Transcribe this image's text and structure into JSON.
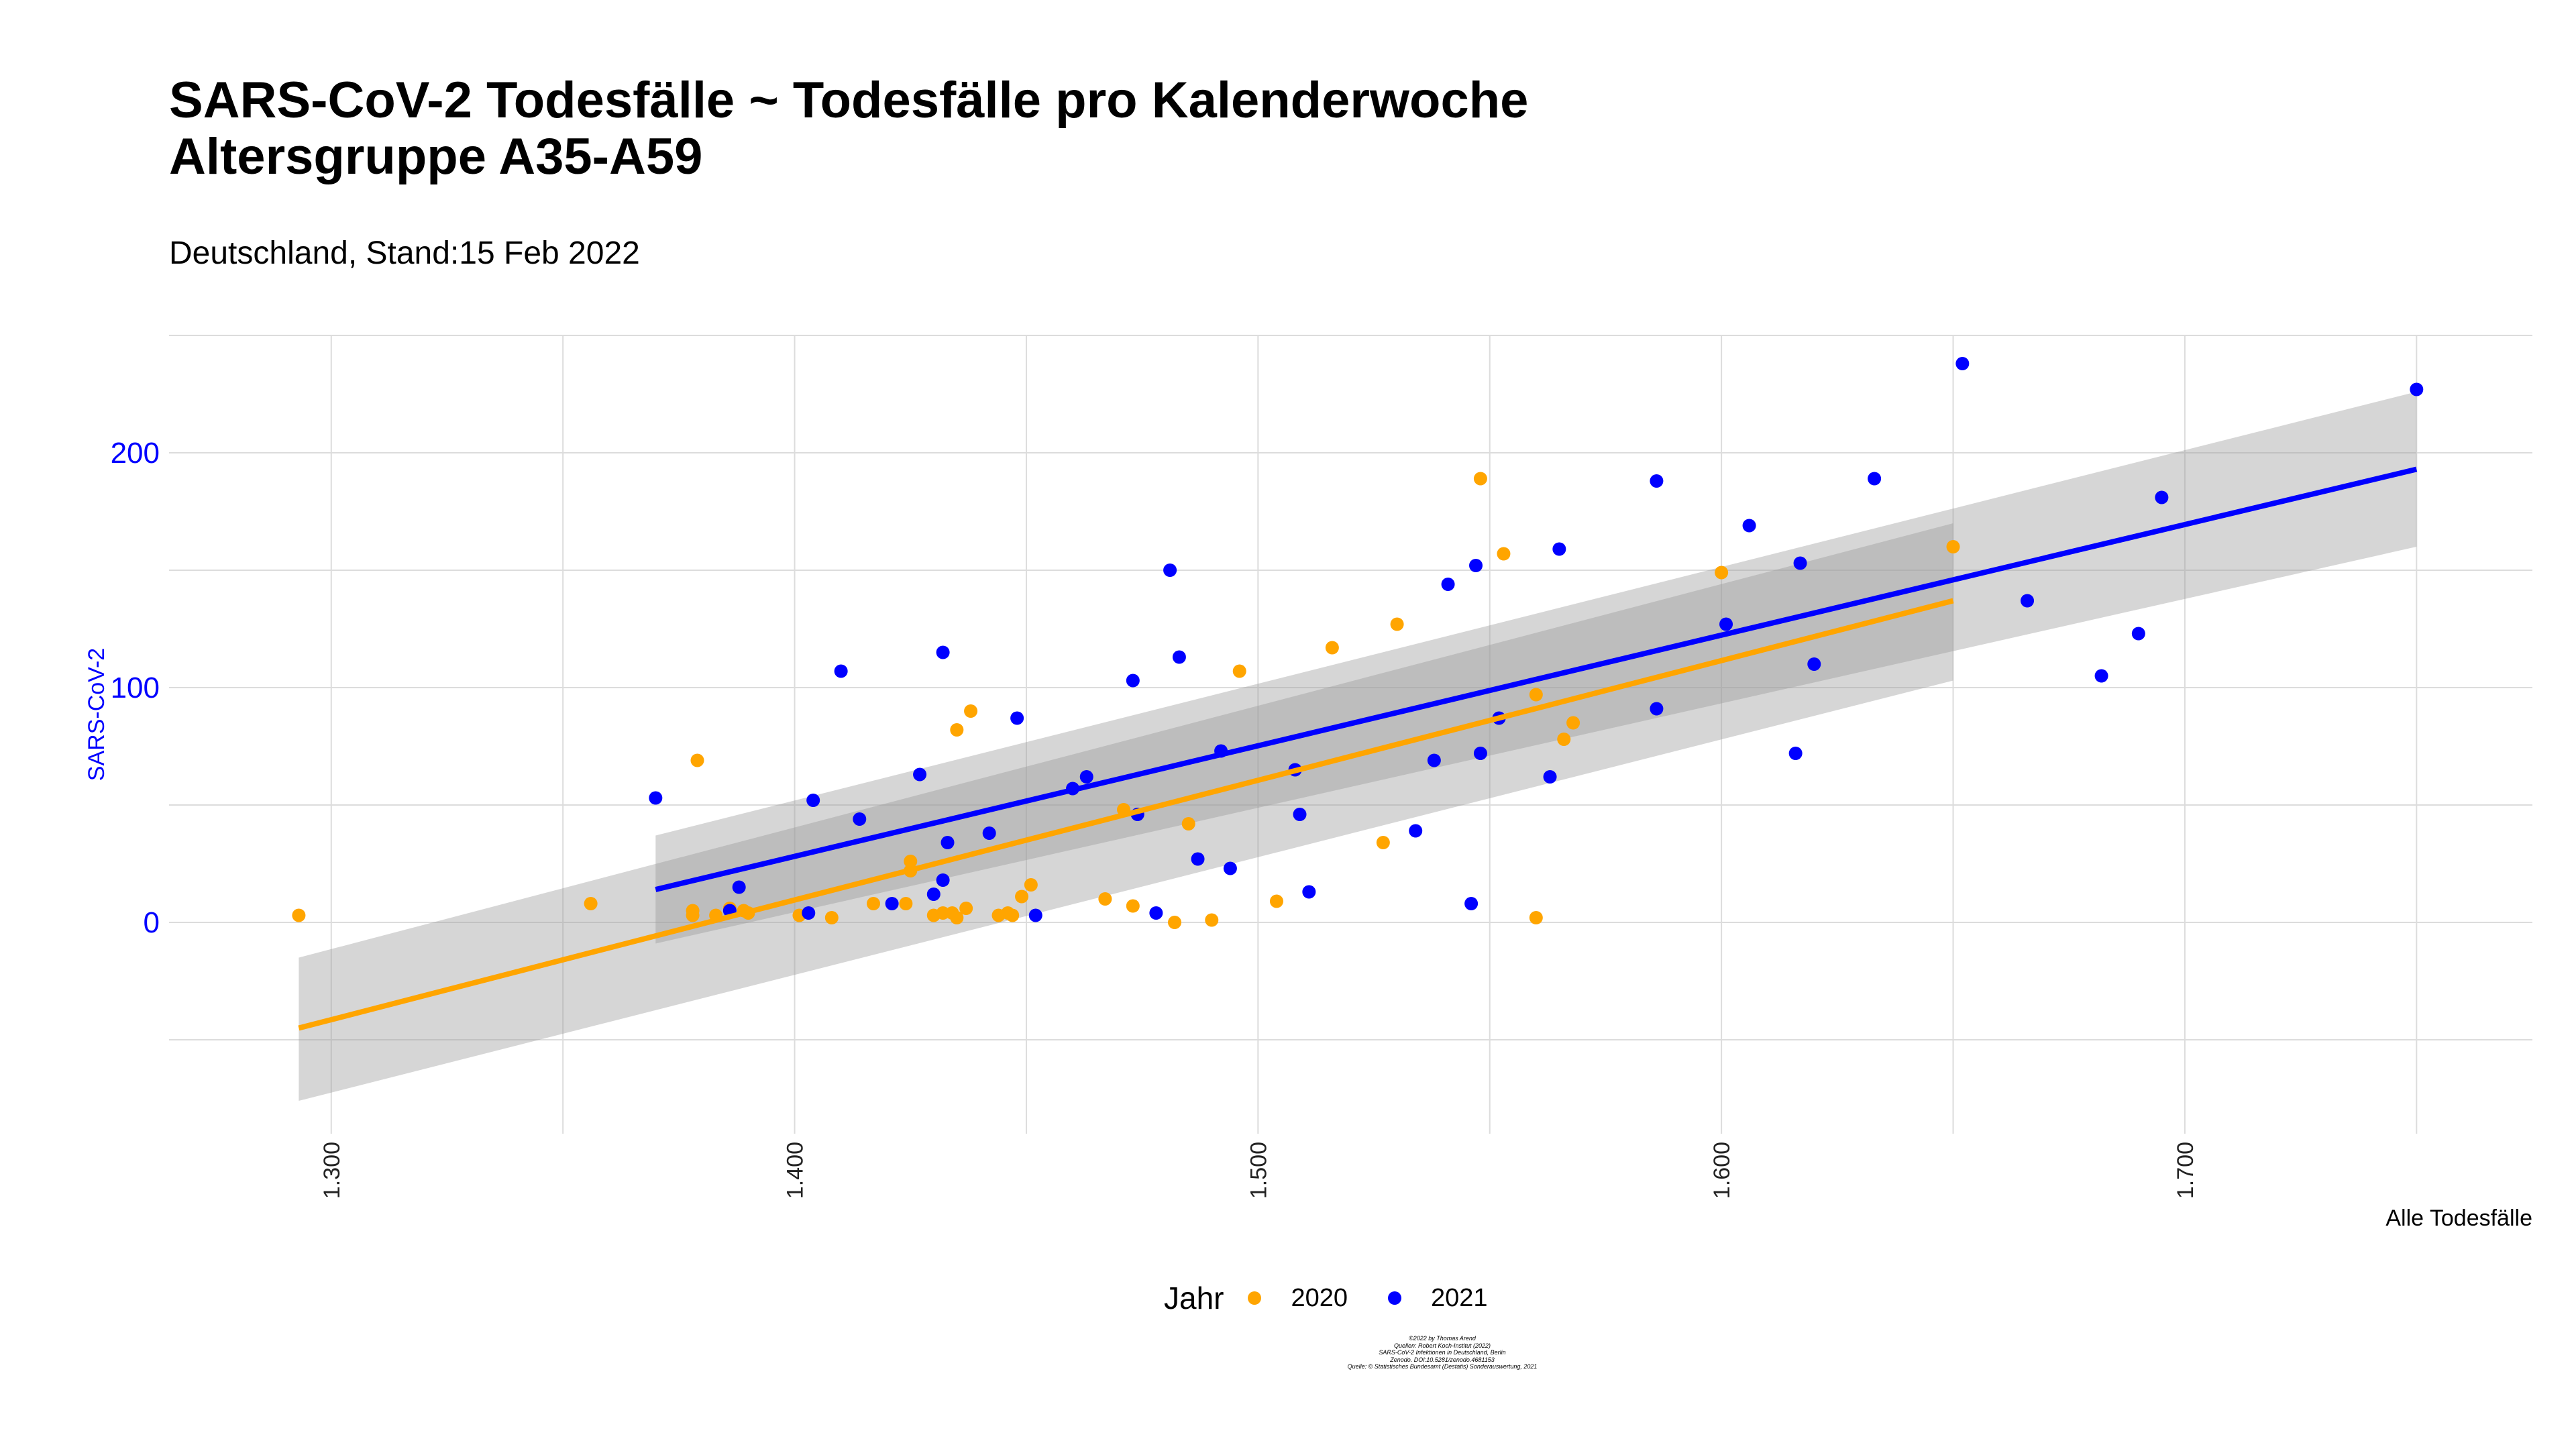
{
  "title_line1": "SARS-CoV-2 Todesfälle ~ Todesfälle pro Kalenderwoche",
  "title_line2": "Altersgruppe A35-A59",
  "subtitle": "Deutschland, Stand:15 Feb 2022",
  "legend": {
    "title": "Jahr",
    "items": [
      {
        "label": "2020",
        "color": "#ffa500"
      },
      {
        "label": "2021",
        "color": "#0000ff"
      }
    ]
  },
  "caption": [
    "©2022 by Thomas Arend",
    "Quellen: Robert Koch-Institut (2022)",
    "SARS-CoV-2 Infektionen in Deutschland, Berlin",
    "Zenodo. DOI:10.5281/zenodo.4681153",
    "Quelle: © Statistisches Bundesamt (Destatis) Sonderauswertung, 2021"
  ],
  "chart_data": {
    "type": "scatter",
    "title": "SARS-CoV-2 Todesfälle ~ Todesfälle pro Kalenderwoche",
    "subtitle": "Altersgruppe A35-A59",
    "xlabel": "Alle Todesfälle",
    "ylabel": "SARS-CoV-2",
    "xlim": [
      1265,
      1775
    ],
    "ylim": [
      -90,
      250
    ],
    "x_ticks": [
      1300,
      1400,
      1500,
      1600,
      1700
    ],
    "x_tick_labels": [
      "1.300",
      "1.400",
      "1.500",
      "1.600",
      "1.700"
    ],
    "y_ticks": [
      0,
      100,
      200
    ],
    "y_tick_labels": [
      "0",
      "100",
      "200"
    ],
    "grid": true,
    "legend_position": "bottom",
    "series": [
      {
        "name": "2020",
        "color": "#ffa500",
        "points": [
          [
            1293,
            3
          ],
          [
            1356,
            8
          ],
          [
            1378,
            5
          ],
          [
            1378,
            3
          ],
          [
            1379,
            69
          ],
          [
            1383,
            3
          ],
          [
            1386,
            6
          ],
          [
            1389,
            5
          ],
          [
            1390,
            4
          ],
          [
            1401,
            3
          ],
          [
            1408,
            2
          ],
          [
            1417,
            8
          ],
          [
            1424,
            8
          ],
          [
            1425,
            26
          ],
          [
            1425,
            22
          ],
          [
            1430,
            3
          ],
          [
            1432,
            4
          ],
          [
            1434,
            4
          ],
          [
            1435,
            2
          ],
          [
            1435,
            82
          ],
          [
            1437,
            6
          ],
          [
            1438,
            90
          ],
          [
            1444,
            3
          ],
          [
            1446,
            4
          ],
          [
            1447,
            3
          ],
          [
            1449,
            11
          ],
          [
            1451,
            16
          ],
          [
            1467,
            10
          ],
          [
            1471,
            48
          ],
          [
            1473,
            7
          ],
          [
            1482,
            0
          ],
          [
            1485,
            42
          ],
          [
            1490,
            1
          ],
          [
            1496,
            107
          ],
          [
            1504,
            9
          ],
          [
            1516,
            117
          ],
          [
            1527,
            34
          ],
          [
            1530,
            127
          ],
          [
            1548,
            189
          ],
          [
            1553,
            157
          ],
          [
            1560,
            97
          ],
          [
            1560,
            2
          ],
          [
            1566,
            78
          ],
          [
            1568,
            85
          ],
          [
            1600,
            149
          ],
          [
            1650,
            160
          ]
        ]
      },
      {
        "name": "2021",
        "color": "#0000ff",
        "points": [
          [
            1370,
            53
          ],
          [
            1386,
            5
          ],
          [
            1388,
            15
          ],
          [
            1403,
            4
          ],
          [
            1404,
            52
          ],
          [
            1410,
            107
          ],
          [
            1414,
            44
          ],
          [
            1421,
            8
          ],
          [
            1427,
            63
          ],
          [
            1430,
            12
          ],
          [
            1432,
            115
          ],
          [
            1432,
            18
          ],
          [
            1433,
            34
          ],
          [
            1442,
            38
          ],
          [
            1448,
            87
          ],
          [
            1452,
            3
          ],
          [
            1460,
            57
          ],
          [
            1463,
            62
          ],
          [
            1473,
            103
          ],
          [
            1474,
            46
          ],
          [
            1478,
            4
          ],
          [
            1481,
            150
          ],
          [
            1483,
            113
          ],
          [
            1487,
            27
          ],
          [
            1492,
            73
          ],
          [
            1494,
            23
          ],
          [
            1508,
            65
          ],
          [
            1509,
            46
          ],
          [
            1511,
            13
          ],
          [
            1534,
            39
          ],
          [
            1538,
            69
          ],
          [
            1541,
            144
          ],
          [
            1546,
            8
          ],
          [
            1547,
            152
          ],
          [
            1548,
            72
          ],
          [
            1552,
            87
          ],
          [
            1563,
            62
          ],
          [
            1565,
            159
          ],
          [
            1586,
            188
          ],
          [
            1586,
            91
          ],
          [
            1601,
            127
          ],
          [
            1606,
            169
          ],
          [
            1616,
            72
          ],
          [
            1617,
            153
          ],
          [
            1620,
            110
          ],
          [
            1633,
            189
          ],
          [
            1652,
            238
          ],
          [
            1666,
            137
          ],
          [
            1682,
            105
          ],
          [
            1690,
            123
          ],
          [
            1695,
            181
          ],
          [
            1750,
            227
          ]
        ]
      }
    ],
    "fits": [
      {
        "name": "2020",
        "color": "#ffa500",
        "x": [
          1293,
          1650
        ],
        "y": [
          -45,
          137
        ],
        "band_lower": [
          -76,
          103
        ],
        "band_upper": [
          -15,
          170
        ]
      },
      {
        "name": "2021",
        "color": "#0000ff",
        "x": [
          1370,
          1750
        ],
        "y": [
          14,
          193
        ],
        "band_lower": [
          -9,
          160
        ],
        "band_upper": [
          37,
          226
        ]
      }
    ]
  }
}
